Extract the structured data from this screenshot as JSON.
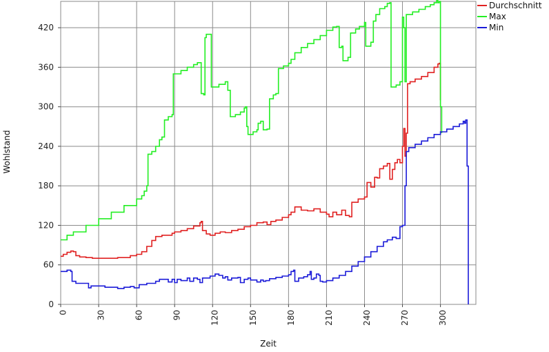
{
  "chart_data": {
    "type": "line",
    "title": "",
    "xlabel": "Zeit",
    "ylabel": "Wohlstand",
    "xlim": [
      0,
      328
    ],
    "ylim": [
      0,
      460
    ],
    "x_ticks": [
      0,
      30,
      60,
      90,
      120,
      150,
      180,
      210,
      240,
      270,
      300
    ],
    "y_ticks": [
      0,
      60,
      120,
      180,
      240,
      300,
      360,
      420
    ],
    "grid": true,
    "legend_position": "right-top",
    "series": [
      {
        "name": "Durchschnitt",
        "color": "#e02020",
        "points": [
          [
            0,
            73
          ],
          [
            2,
            76
          ],
          [
            5,
            79
          ],
          [
            8,
            81
          ],
          [
            10,
            80
          ],
          [
            12,
            74
          ],
          [
            15,
            72
          ],
          [
            20,
            71
          ],
          [
            25,
            70
          ],
          [
            35,
            70
          ],
          [
            45,
            71
          ],
          [
            55,
            74
          ],
          [
            60,
            76
          ],
          [
            64,
            80
          ],
          [
            68,
            88
          ],
          [
            72,
            97
          ],
          [
            75,
            103
          ],
          [
            80,
            105
          ],
          [
            85,
            105
          ],
          [
            88,
            108
          ],
          [
            90,
            110
          ],
          [
            95,
            112
          ],
          [
            100,
            115
          ],
          [
            105,
            119
          ],
          [
            110,
            124
          ],
          [
            111,
            126
          ],
          [
            112,
            112
          ],
          [
            115,
            107
          ],
          [
            118,
            105
          ],
          [
            122,
            108
          ],
          [
            126,
            110
          ],
          [
            130,
            109
          ],
          [
            135,
            112
          ],
          [
            140,
            114
          ],
          [
            145,
            118
          ],
          [
            150,
            120
          ],
          [
            155,
            124
          ],
          [
            160,
            125
          ],
          [
            163,
            121
          ],
          [
            166,
            126
          ],
          [
            170,
            128
          ],
          [
            175,
            132
          ],
          [
            180,
            136
          ],
          [
            182,
            140
          ],
          [
            185,
            148
          ],
          [
            190,
            143
          ],
          [
            195,
            142
          ],
          [
            200,
            145
          ],
          [
            205,
            140
          ],
          [
            210,
            137
          ],
          [
            212,
            133
          ],
          [
            215,
            140
          ],
          [
            218,
            136
          ],
          [
            222,
            143
          ],
          [
            225,
            135
          ],
          [
            228,
            133
          ],
          [
            230,
            155
          ],
          [
            235,
            160
          ],
          [
            240,
            163
          ],
          [
            242,
            185
          ],
          [
            245,
            178
          ],
          [
            248,
            193
          ],
          [
            250,
            192
          ],
          [
            252,
            206
          ],
          [
            255,
            210
          ],
          [
            258,
            214
          ],
          [
            260,
            190
          ],
          [
            262,
            205
          ],
          [
            264,
            215
          ],
          [
            266,
            220
          ],
          [
            268,
            215
          ],
          [
            270,
            240
          ],
          [
            271,
            267
          ],
          [
            272,
            225
          ],
          [
            273,
            260
          ],
          [
            274,
            335
          ],
          [
            276,
            338
          ],
          [
            280,
            342
          ],
          [
            285,
            346
          ],
          [
            290,
            352
          ],
          [
            295,
            360
          ],
          [
            298,
            365
          ],
          [
            299,
            366
          ],
          [
            300,
            310
          ]
        ]
      },
      {
        "name": "Max",
        "color": "#22ee22",
        "points": [
          [
            0,
            98
          ],
          [
            5,
            105
          ],
          [
            10,
            110
          ],
          [
            20,
            120
          ],
          [
            30,
            130
          ],
          [
            40,
            140
          ],
          [
            50,
            150
          ],
          [
            60,
            160
          ],
          [
            64,
            165
          ],
          [
            66,
            172
          ],
          [
            68,
            180
          ],
          [
            69,
            228
          ],
          [
            72,
            232
          ],
          [
            75,
            240
          ],
          [
            78,
            250
          ],
          [
            80,
            254
          ],
          [
            82,
            280
          ],
          [
            85,
            285
          ],
          [
            88,
            288
          ],
          [
            89,
            350
          ],
          [
            95,
            355
          ],
          [
            100,
            360
          ],
          [
            105,
            364
          ],
          [
            108,
            367
          ],
          [
            110,
            367
          ],
          [
            111,
            320
          ],
          [
            113,
            318
          ],
          [
            114,
            405
          ],
          [
            115,
            410
          ],
          [
            118,
            410
          ],
          [
            119,
            330
          ],
          [
            125,
            334
          ],
          [
            130,
            338
          ],
          [
            132,
            325
          ],
          [
            134,
            285
          ],
          [
            138,
            288
          ],
          [
            142,
            292
          ],
          [
            145,
            298
          ],
          [
            146,
            300
          ],
          [
            147,
            270
          ],
          [
            148,
            258
          ],
          [
            152,
            262
          ],
          [
            155,
            265
          ],
          [
            156,
            275
          ],
          [
            158,
            278
          ],
          [
            160,
            265
          ],
          [
            163,
            266
          ],
          [
            165,
            312
          ],
          [
            168,
            318
          ],
          [
            170,
            320
          ],
          [
            172,
            358
          ],
          [
            176,
            362
          ],
          [
            180,
            366
          ],
          [
            182,
            372
          ],
          [
            185,
            382
          ],
          [
            190,
            390
          ],
          [
            195,
            396
          ],
          [
            200,
            402
          ],
          [
            205,
            408
          ],
          [
            210,
            416
          ],
          [
            215,
            421
          ],
          [
            218,
            422
          ],
          [
            220,
            390
          ],
          [
            222,
            392
          ],
          [
            223,
            370
          ],
          [
            227,
            375
          ],
          [
            229,
            412
          ],
          [
            233,
            418
          ],
          [
            236,
            422
          ],
          [
            240,
            428
          ],
          [
            241,
            392
          ],
          [
            245,
            398
          ],
          [
            247,
            430
          ],
          [
            249,
            440
          ],
          [
            252,
            449
          ],
          [
            256,
            452
          ],
          [
            258,
            457
          ],
          [
            260,
            458
          ],
          [
            261,
            330
          ],
          [
            265,
            333
          ],
          [
            268,
            338
          ],
          [
            270,
            436
          ],
          [
            271,
            420
          ],
          [
            272,
            338
          ],
          [
            273,
            440
          ],
          [
            278,
            444
          ],
          [
            283,
            448
          ],
          [
            288,
            452
          ],
          [
            292,
            455
          ],
          [
            295,
            458
          ],
          [
            297,
            462
          ],
          [
            298,
            458
          ],
          [
            299,
            460
          ],
          [
            300,
            300
          ],
          [
            301,
            260
          ]
        ]
      },
      {
        "name": "Min",
        "color": "#1a1ad8",
        "points": [
          [
            0,
            50
          ],
          [
            5,
            52
          ],
          [
            8,
            50
          ],
          [
            9,
            35
          ],
          [
            12,
            32
          ],
          [
            20,
            32
          ],
          [
            22,
            25
          ],
          [
            24,
            28
          ],
          [
            30,
            28
          ],
          [
            35,
            26
          ],
          [
            40,
            26
          ],
          [
            45,
            24
          ],
          [
            50,
            26
          ],
          [
            55,
            27
          ],
          [
            58,
            25
          ],
          [
            62,
            30
          ],
          [
            68,
            32
          ],
          [
            75,
            35
          ],
          [
            78,
            38
          ],
          [
            82,
            38
          ],
          [
            85,
            34
          ],
          [
            88,
            38
          ],
          [
            90,
            33
          ],
          [
            92,
            38
          ],
          [
            95,
            36
          ],
          [
            100,
            40
          ],
          [
            102,
            35
          ],
          [
            105,
            40
          ],
          [
            108,
            38
          ],
          [
            110,
            33
          ],
          [
            112,
            40
          ],
          [
            115,
            40
          ],
          [
            118,
            43
          ],
          [
            122,
            46
          ],
          [
            125,
            44
          ],
          [
            128,
            40
          ],
          [
            130,
            42
          ],
          [
            132,
            37
          ],
          [
            135,
            40
          ],
          [
            140,
            41
          ],
          [
            142,
            33
          ],
          [
            145,
            38
          ],
          [
            148,
            40
          ],
          [
            150,
            37
          ],
          [
            155,
            34
          ],
          [
            158,
            37
          ],
          [
            160,
            35
          ],
          [
            162,
            36
          ],
          [
            165,
            39
          ],
          [
            170,
            41
          ],
          [
            175,
            43
          ],
          [
            180,
            45
          ],
          [
            182,
            50
          ],
          [
            184,
            52
          ],
          [
            185,
            35
          ],
          [
            188,
            40
          ],
          [
            192,
            42
          ],
          [
            195,
            45
          ],
          [
            197,
            50
          ],
          [
            198,
            38
          ],
          [
            200,
            40
          ],
          [
            202,
            46
          ],
          [
            204,
            44
          ],
          [
            205,
            35
          ],
          [
            207,
            34
          ],
          [
            210,
            36
          ],
          [
            215,
            40
          ],
          [
            220,
            44
          ],
          [
            225,
            50
          ],
          [
            230,
            58
          ],
          [
            235,
            65
          ],
          [
            240,
            72
          ],
          [
            245,
            80
          ],
          [
            250,
            88
          ],
          [
            255,
            95
          ],
          [
            258,
            98
          ],
          [
            262,
            102
          ],
          [
            265,
            100
          ],
          [
            268,
            118
          ],
          [
            270,
            120
          ],
          [
            272,
            180
          ],
          [
            273,
            232
          ],
          [
            275,
            238
          ],
          [
            280,
            243
          ],
          [
            285,
            248
          ],
          [
            290,
            253
          ],
          [
            295,
            258
          ],
          [
            300,
            262
          ],
          [
            305,
            266
          ],
          [
            310,
            270
          ],
          [
            315,
            274
          ],
          [
            318,
            278
          ],
          [
            319,
            275
          ],
          [
            320,
            280
          ],
          [
            321,
            210
          ],
          [
            322,
            0
          ]
        ]
      }
    ]
  }
}
